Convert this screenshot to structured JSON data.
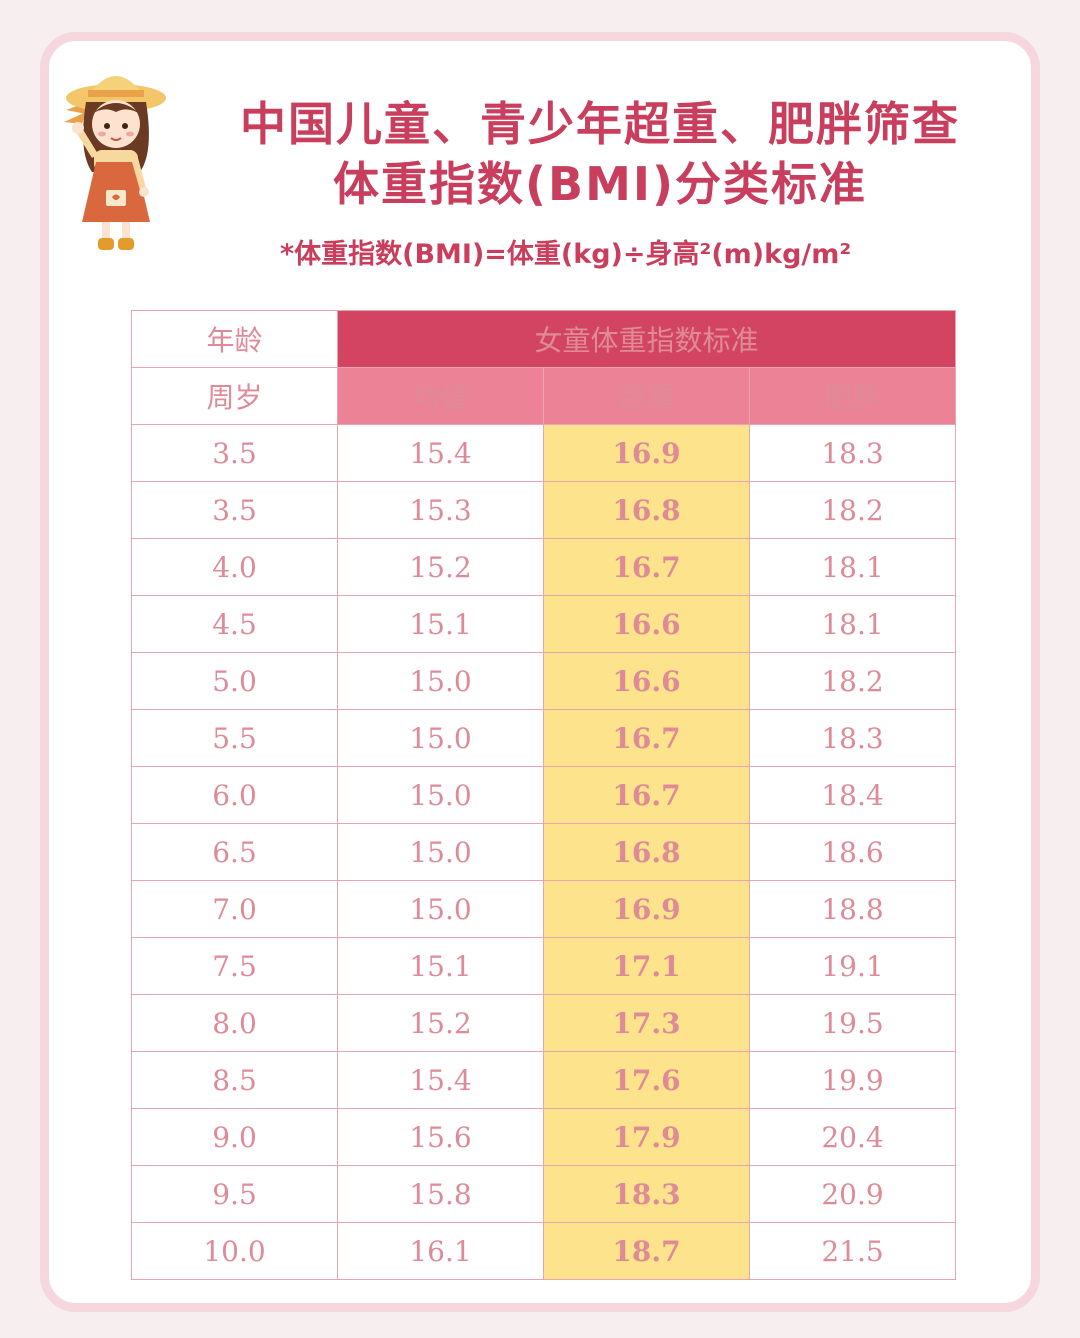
{
  "title": {
    "line1": "中国儿童、青少年超重、肥胖筛查",
    "line2": "体重指数(BMI)分类标准"
  },
  "formula": "*体重指数(BMI)=体重(kg)÷身高²(m)kg/m²",
  "table": {
    "age_label": "年龄",
    "age_unit": "周岁",
    "group_header": "女童体重指数标准",
    "columns": [
      "均值",
      "超重",
      "肥胖"
    ],
    "rows": [
      {
        "age": "3.5",
        "mean": "15.4",
        "overweight": "16.9",
        "obese": "18.3"
      },
      {
        "age": "3.5",
        "mean": "15.3",
        "overweight": "16.8",
        "obese": "18.2"
      },
      {
        "age": "4.0",
        "mean": "15.2",
        "overweight": "16.7",
        "obese": "18.1"
      },
      {
        "age": "4.5",
        "mean": "15.1",
        "overweight": "16.6",
        "obese": "18.1"
      },
      {
        "age": "5.0",
        "mean": "15.0",
        "overweight": "16.6",
        "obese": "18.2"
      },
      {
        "age": "5.5",
        "mean": "15.0",
        "overweight": "16.7",
        "obese": "18.3"
      },
      {
        "age": "6.0",
        "mean": "15.0",
        "overweight": "16.7",
        "obese": "18.4"
      },
      {
        "age": "6.5",
        "mean": "15.0",
        "overweight": "16.8",
        "obese": "18.6"
      },
      {
        "age": "7.0",
        "mean": "15.0",
        "overweight": "16.9",
        "obese": "18.8"
      },
      {
        "age": "7.5",
        "mean": "15.1",
        "overweight": "17.1",
        "obese": "19.1"
      },
      {
        "age": "8.0",
        "mean": "15.2",
        "overweight": "17.3",
        "obese": "19.5"
      },
      {
        "age": "8.5",
        "mean": "15.4",
        "overweight": "17.6",
        "obese": "19.9"
      },
      {
        "age": "9.0",
        "mean": "15.6",
        "overweight": "17.9",
        "obese": "20.4"
      },
      {
        "age": "9.5",
        "mean": "15.8",
        "overweight": "18.3",
        "obese": "20.9"
      },
      {
        "age": "10.0",
        "mean": "16.1",
        "overweight": "18.7",
        "obese": "21.5"
      }
    ]
  },
  "colors": {
    "title": "#c93e5c",
    "group_header_bg": "#d34462",
    "column_header_bg": "#ec8295",
    "overweight_bg": "#fde48c",
    "overweight_text": "#d80c18",
    "cell_text": "#df8b97",
    "border": "#e7a5b2",
    "frame": "#f6d7dd"
  },
  "decoration": "girl-with-straw-hat-illustration"
}
